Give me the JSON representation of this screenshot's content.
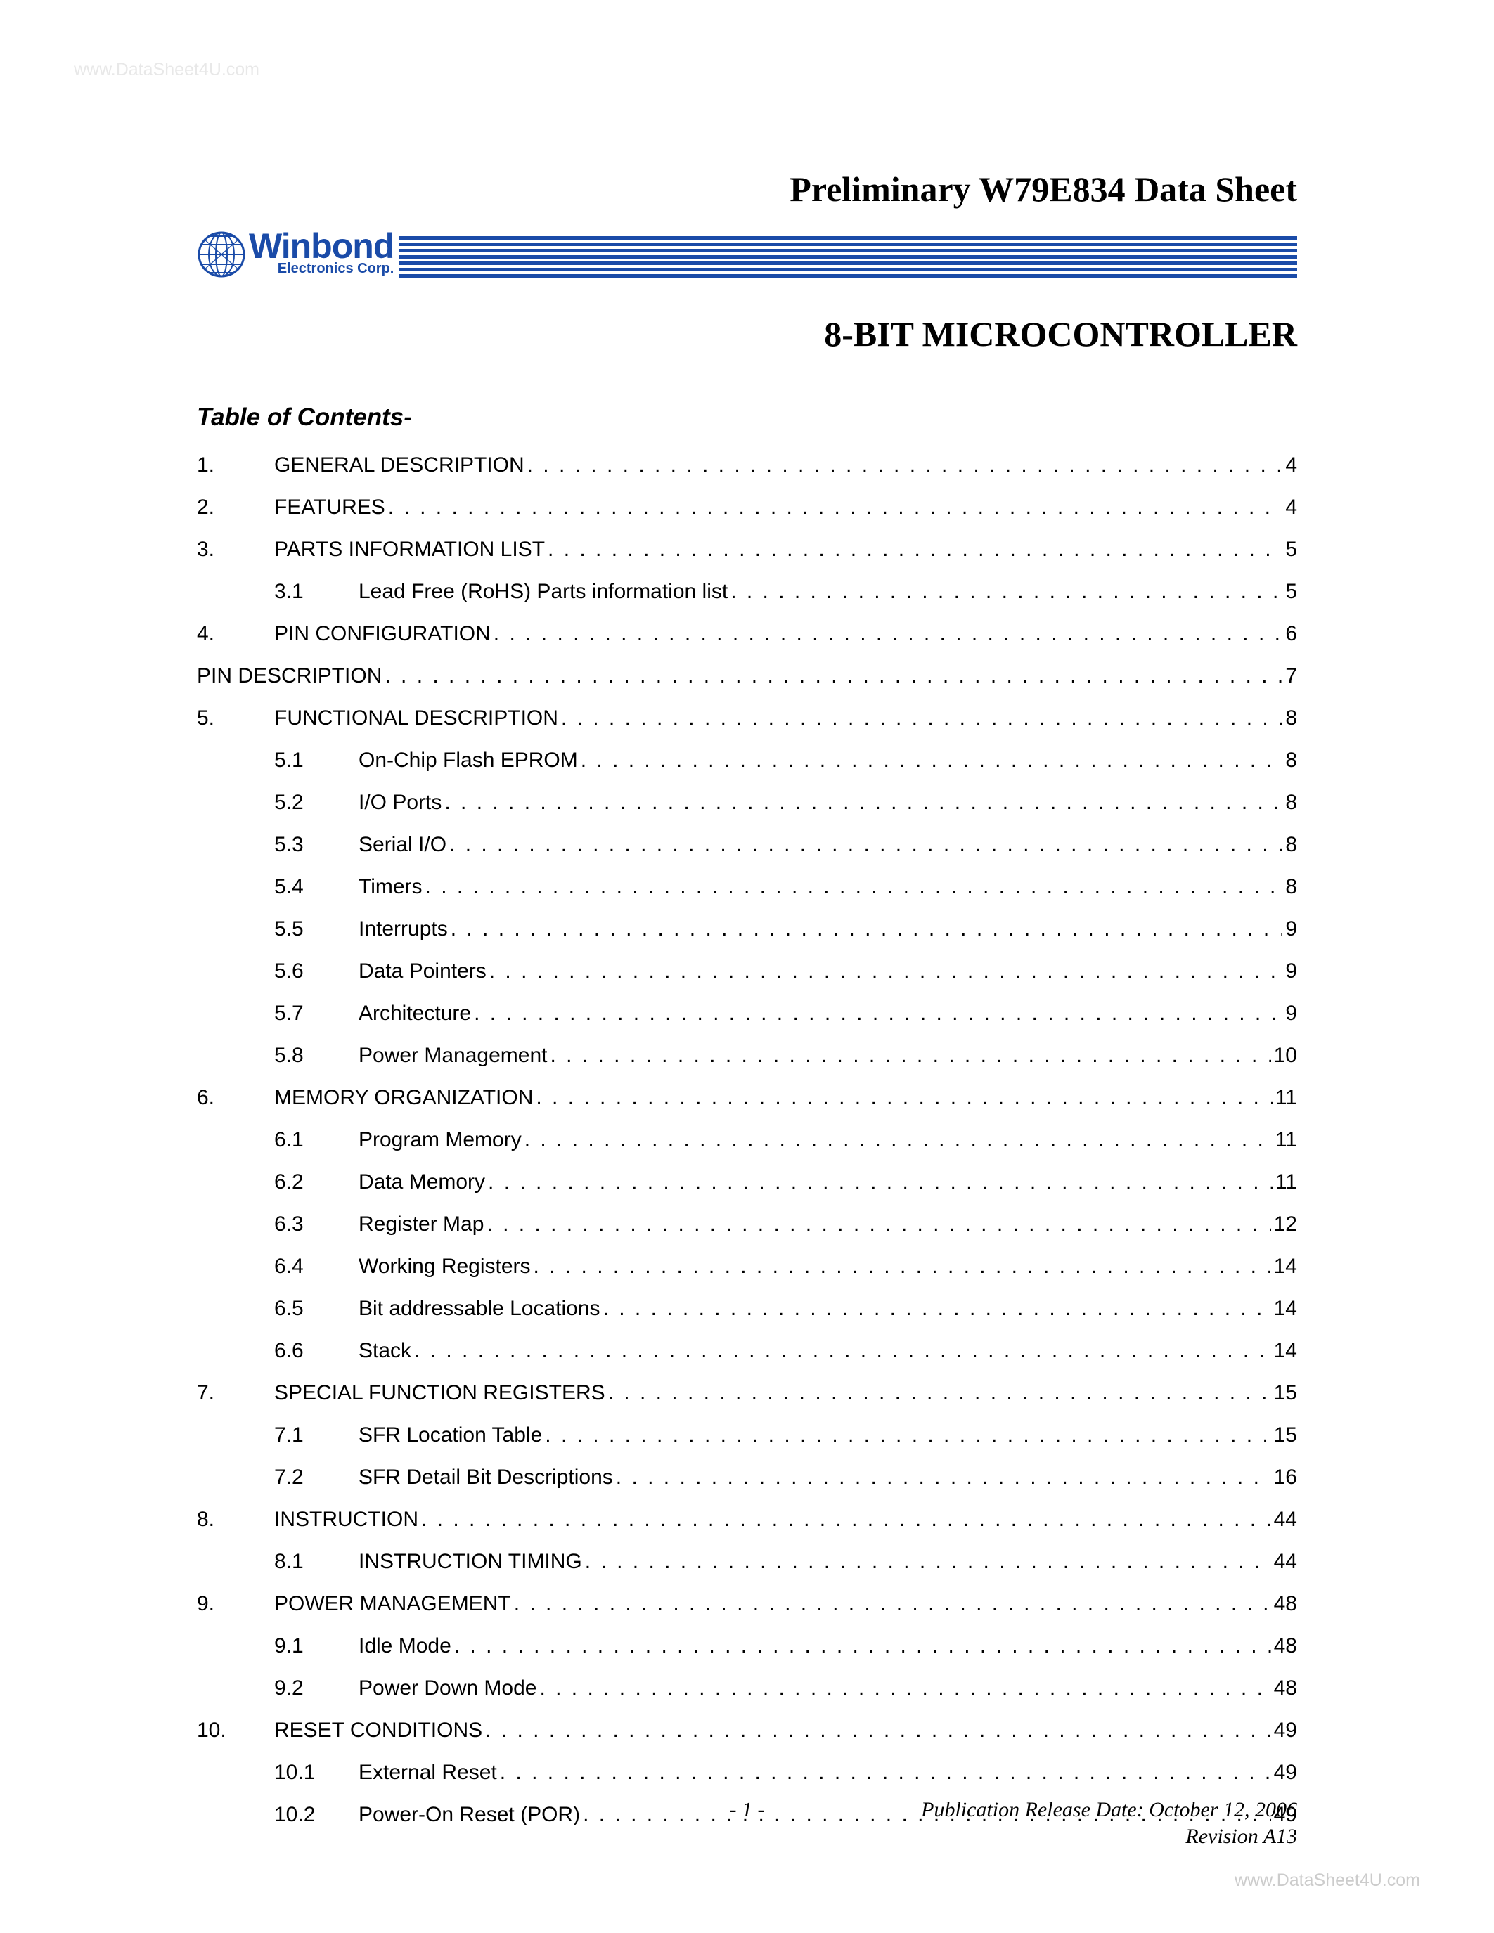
{
  "watermark_top": "www.DataSheet4U.com",
  "watermark_bottom": "www.DataSheet4U.com",
  "title": "Preliminary W79E834 Data Sheet",
  "logo": {
    "text_main": "Winbond",
    "text_sub": "Electronics Corp.",
    "color": "#1a4ba8",
    "stripe_count": 7
  },
  "subtitle": "8-BIT MICROCONTROLLER",
  "toc_header": "Table of Contents-",
  "toc": [
    {
      "type": "main",
      "num": "1.",
      "label": "GENERAL DESCRIPTION",
      "page": "4"
    },
    {
      "type": "main",
      "num": "2.",
      "label": "FEATURES",
      "page": "4"
    },
    {
      "type": "main",
      "num": "3.",
      "label": "PARTS INFORMATION LIST",
      "page": "5"
    },
    {
      "type": "sub",
      "num": "3.1",
      "label": "Lead Free (RoHS) Parts information list",
      "page": "5"
    },
    {
      "type": "main",
      "num": "4.",
      "label": "PIN CONFIGURATION",
      "page": "6"
    },
    {
      "type": "flat",
      "num": "",
      "label": "PIN DESCRIPTION",
      "page": "7"
    },
    {
      "type": "main",
      "num": "5.",
      "label": "FUNCTIONAL DESCRIPTION",
      "page": "8"
    },
    {
      "type": "sub",
      "num": "5.1",
      "label": "On-Chip Flash EPROM",
      "page": "8"
    },
    {
      "type": "sub",
      "num": "5.2",
      "label": "I/O Ports",
      "page": "8"
    },
    {
      "type": "sub",
      "num": "5.3",
      "label": "Serial I/O",
      "page": "8"
    },
    {
      "type": "sub",
      "num": "5.4",
      "label": "Timers",
      "page": "8"
    },
    {
      "type": "sub",
      "num": "5.5",
      "label": "Interrupts",
      "page": "9"
    },
    {
      "type": "sub",
      "num": "5.6",
      "label": "Data Pointers",
      "page": "9"
    },
    {
      "type": "sub",
      "num": "5.7",
      "label": "Architecture",
      "page": "9"
    },
    {
      "type": "sub",
      "num": "5.8",
      "label": "Power Management",
      "page": "10"
    },
    {
      "type": "main",
      "num": "6.",
      "label": "MEMORY ORGANIZATION",
      "page": "11"
    },
    {
      "type": "sub",
      "num": "6.1",
      "label": "Program Memory",
      "page": "11"
    },
    {
      "type": "sub",
      "num": "6.2",
      "label": "Data Memory",
      "page": "11"
    },
    {
      "type": "sub",
      "num": "6.3",
      "label": "Register Map",
      "page": "12"
    },
    {
      "type": "sub",
      "num": "6.4",
      "label": "Working Registers",
      "page": "14"
    },
    {
      "type": "sub",
      "num": "6.5",
      "label": "Bit addressable Locations",
      "page": "14"
    },
    {
      "type": "sub",
      "num": "6.6",
      "label": "Stack",
      "page": "14"
    },
    {
      "type": "main",
      "num": "7.",
      "label": "SPECIAL FUNCTION REGISTERS",
      "page": "15"
    },
    {
      "type": "sub",
      "num": "7.1",
      "label": "SFR Location Table",
      "page": "15"
    },
    {
      "type": "sub",
      "num": "7.2",
      "label": "SFR Detail Bit Descriptions",
      "page": "16"
    },
    {
      "type": "main",
      "num": "8.",
      "label": "INSTRUCTION",
      "page": "44"
    },
    {
      "type": "sub",
      "num": "8.1",
      "label": "INSTRUCTION TIMING",
      "page": "44"
    },
    {
      "type": "main",
      "num": "9.",
      "label": "POWER MANAGEMENT",
      "page": "48"
    },
    {
      "type": "sub",
      "num": "9.1",
      "label": "Idle Mode",
      "page": "48"
    },
    {
      "type": "sub",
      "num": "9.2",
      "label": "Power Down Mode",
      "page": "48"
    },
    {
      "type": "main",
      "num": "10.",
      "label": "RESET CONDITIONS",
      "page": "49"
    },
    {
      "type": "sub",
      "num": "10.1",
      "label": "External Reset",
      "page": "49"
    },
    {
      "type": "sub",
      "num": "10.2",
      "label": "Power-On Reset (POR)",
      "page": "49"
    }
  ],
  "footer": {
    "release": "Publication Release Date: October 12, 2006",
    "page": "- 1 -",
    "revision": "Revision A13"
  },
  "styling": {
    "page_bg": "#ffffff",
    "text_color": "#000000",
    "watermark_color_top": "#e8e8e8",
    "watermark_color_bottom": "#cccccc",
    "title_font": "Times New Roman",
    "title_fontsize": 50,
    "body_font": "Arial",
    "toc_fontsize": 30,
    "toc_header_fontsize": 35,
    "footer_font": "Times New Roman",
    "footer_fontsize": 30,
    "leader_char": "."
  }
}
